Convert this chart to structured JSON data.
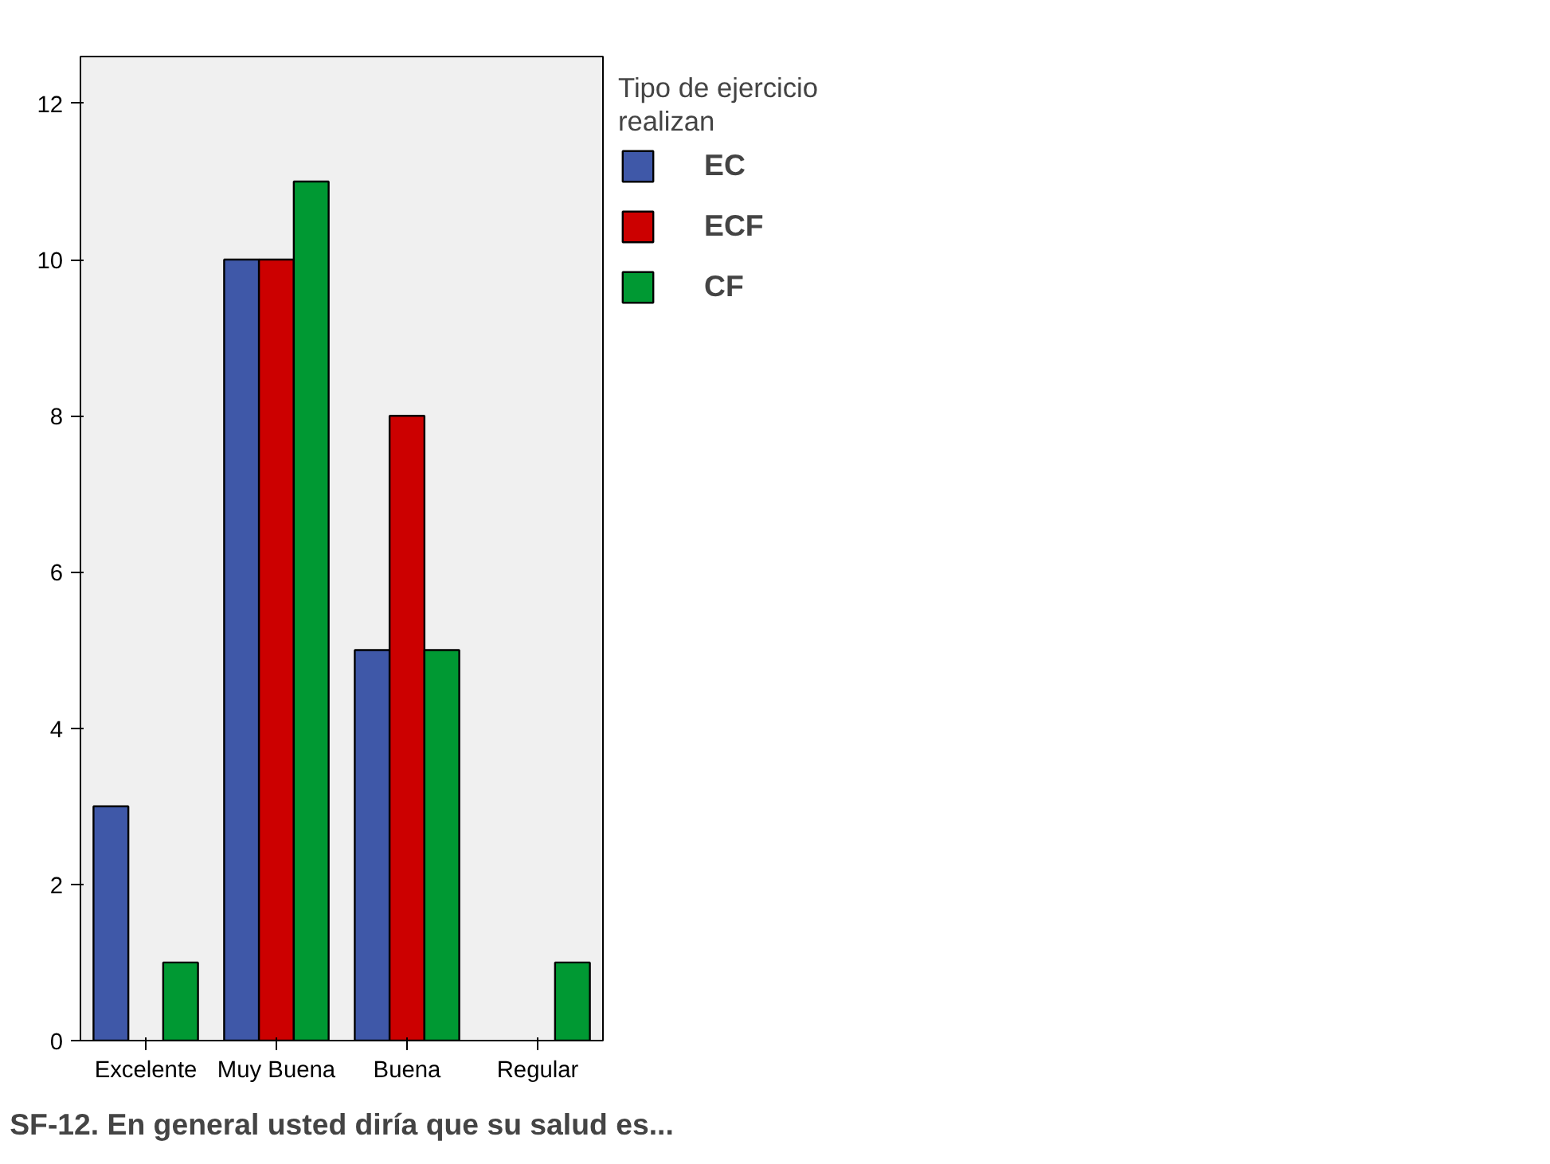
{
  "chart_data": {
    "type": "bar",
    "xlabel": "SF-12. En general usted diría que su salud es...",
    "legend_title": "Tipo de ejercicio\nrealizan",
    "categories": [
      "Excelente",
      "Muy Buena",
      "Buena",
      "Regular"
    ],
    "series": [
      {
        "name": "EC",
        "color": "#3f58a8",
        "values": [
          3,
          10,
          5,
          null
        ]
      },
      {
        "name": "ECF",
        "color": "#cc0000",
        "values": [
          null,
          10,
          8,
          null
        ]
      },
      {
        "name": "CF",
        "color": "#009933",
        "values": [
          1,
          11,
          5,
          1
        ]
      }
    ],
    "ylim": [
      0,
      12.6
    ],
    "yticks": [
      0,
      2,
      4,
      6,
      8,
      10,
      12
    ],
    "grid": false,
    "legend": "right"
  }
}
